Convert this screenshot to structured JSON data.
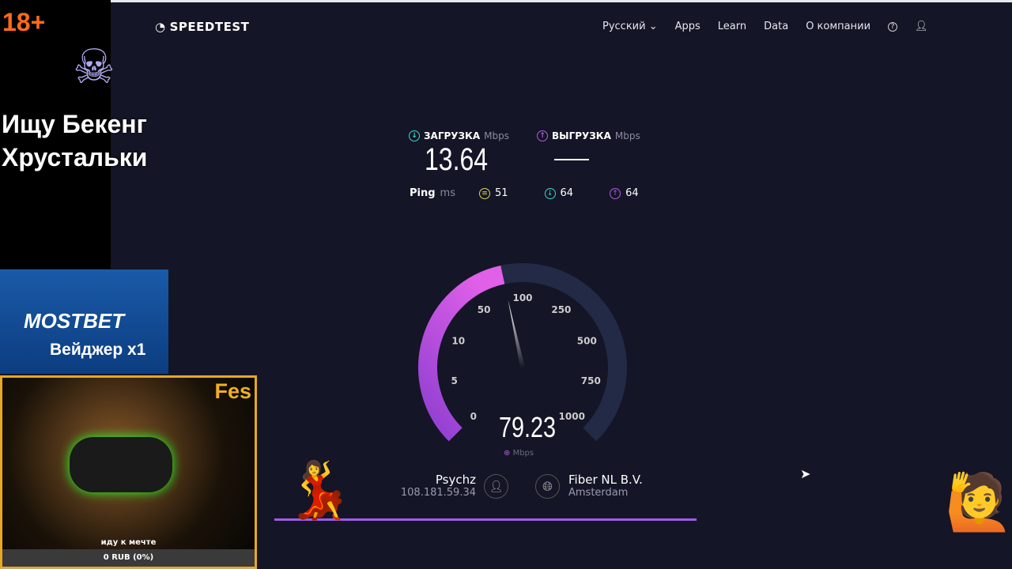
{
  "header": {
    "logo": "SPEEDTEST",
    "nav": [
      "Русский",
      "Apps",
      "Learn",
      "Data",
      "О компании"
    ]
  },
  "download": {
    "label": "ЗАГРУЗКА",
    "unit": "Mbps",
    "value": "13.64",
    "color": "#3dd6c4"
  },
  "upload": {
    "label": "ВЫГРУЗКА",
    "unit": "Mbps",
    "value": "—",
    "color": "#b05ee0"
  },
  "ping": {
    "label": "Ping",
    "unit": "ms",
    "idle": "51",
    "down": "64",
    "up": "64"
  },
  "gauge": {
    "ticks": [
      "0",
      "5",
      "10",
      "50",
      "100",
      "250",
      "500",
      "750",
      "1000"
    ],
    "value": "79.23",
    "unit": "Mbps",
    "fill_fraction": 0.455
  },
  "client": {
    "name": "Psychz",
    "ip": "108.181.59.34"
  },
  "server": {
    "name": "Fiber NL B.V.",
    "city": "Amsterdam"
  },
  "overlay": {
    "age": "18+",
    "promo": "Ищу Бекенг Хрустальки",
    "brand": "MOSTBET",
    "wager": "Вейджер x1",
    "cam_name": "Fes",
    "goal": "иду к мечте",
    "goal_progress": "0 RUB (0%)"
  }
}
